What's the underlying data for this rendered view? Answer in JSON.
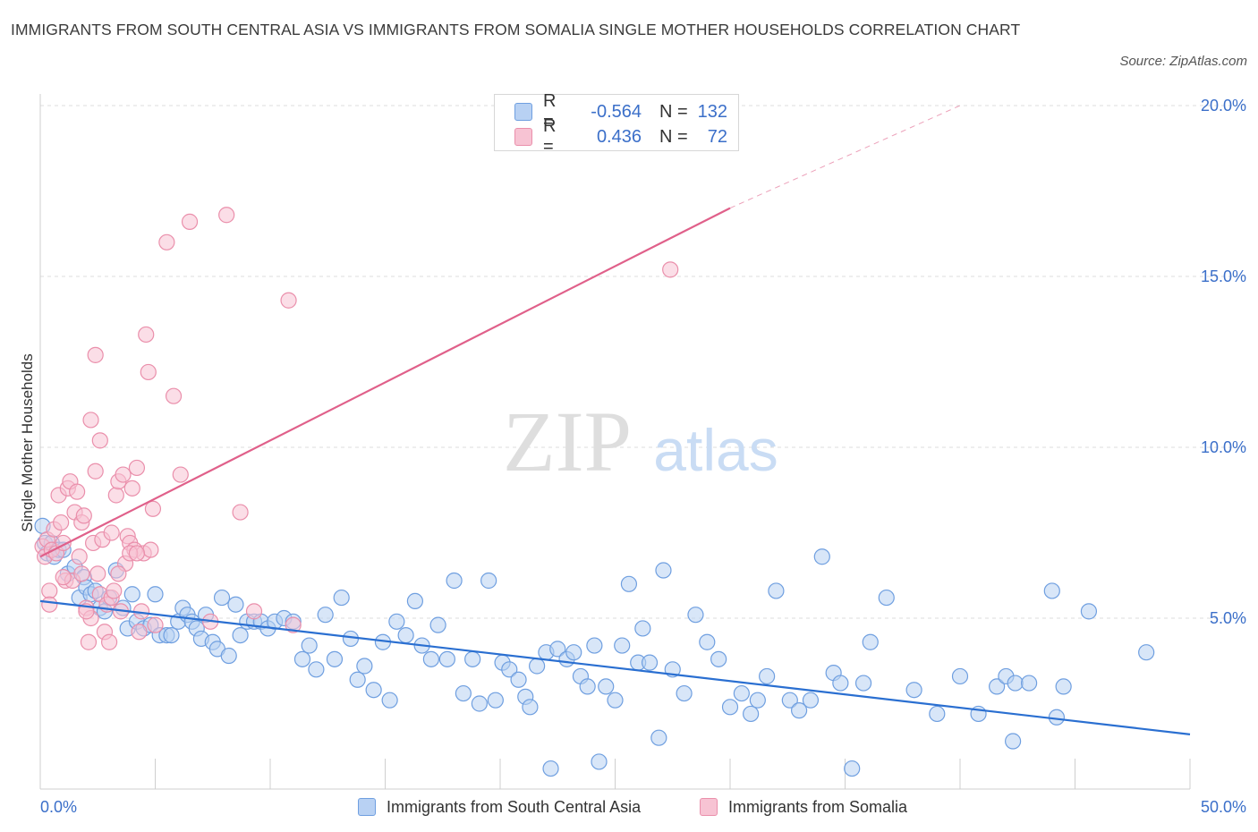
{
  "title": "IMMIGRANTS FROM SOUTH CENTRAL ASIA VS IMMIGRANTS FROM SOMALIA SINGLE MOTHER HOUSEHOLDS CORRELATION CHART",
  "source": "Source: ZipAtlas.com",
  "watermark": {
    "zip": "ZIP",
    "atlas": "atlas"
  },
  "colors": {
    "blue_fill": "#b8d1f3",
    "blue_stroke": "#6f9fe0",
    "blue_line": "#2a6fd1",
    "pink_fill": "#f7c3d3",
    "pink_stroke": "#ea8fab",
    "pink_line": "#e0608a",
    "axis_label": "#3b6fc9",
    "grid": "#dcdcdc"
  },
  "legend": {
    "rows": [
      {
        "r_label": "R =",
        "r_value": "-0.564",
        "n_label": "N =",
        "n_value": "132"
      },
      {
        "r_label": "R =",
        "r_value": "0.436",
        "n_label": "N =",
        "n_value": "72"
      }
    ]
  },
  "bottom_legend": [
    "Immigrants from South Central Asia",
    "Immigrants from Somalia"
  ],
  "chart_data": {
    "type": "scatter",
    "title": "IMMIGRANTS FROM SOUTH CENTRAL ASIA VS IMMIGRANTS FROM SOMALIA SINGLE MOTHER HOUSEHOLDS CORRELATION CHART",
    "xlabel": "",
    "ylabel": "Single Mother Households",
    "xlim": [
      0,
      50
    ],
    "ylim": [
      0,
      20
    ],
    "x_tick_labels": [
      "0.0%",
      "50.0%"
    ],
    "y_ticks": [
      5,
      10,
      15,
      20
    ],
    "y_tick_labels": [
      "5.0%",
      "10.0%",
      "15.0%",
      "20.0%"
    ],
    "grid": "horizontal dashed",
    "legend_position": "top-center",
    "series": [
      {
        "name": "Immigrants from South Central Asia",
        "r": -0.564,
        "n": 132,
        "trend": {
          "x": [
            0,
            50
          ],
          "y": [
            5.5,
            1.6
          ]
        },
        "points": [
          [
            0.1,
            7.7
          ],
          [
            0.2,
            7.2
          ],
          [
            0.3,
            6.9
          ],
          [
            0.5,
            7.2
          ],
          [
            0.6,
            6.8
          ],
          [
            0.8,
            7.0
          ],
          [
            1.0,
            7.0
          ],
          [
            1.2,
            6.3
          ],
          [
            1.5,
            6.5
          ],
          [
            1.7,
            5.6
          ],
          [
            1.9,
            6.2
          ],
          [
            2.0,
            5.9
          ],
          [
            2.2,
            5.7
          ],
          [
            2.4,
            5.8
          ],
          [
            2.6,
            5.3
          ],
          [
            2.8,
            5.2
          ],
          [
            3.0,
            5.6
          ],
          [
            3.3,
            6.4
          ],
          [
            3.6,
            5.3
          ],
          [
            3.8,
            4.7
          ],
          [
            4.0,
            5.7
          ],
          [
            4.2,
            4.9
          ],
          [
            4.5,
            4.7
          ],
          [
            4.8,
            4.8
          ],
          [
            5.0,
            5.7
          ],
          [
            5.2,
            4.5
          ],
          [
            5.5,
            4.5
          ],
          [
            5.7,
            4.5
          ],
          [
            6.0,
            4.9
          ],
          [
            6.2,
            5.3
          ],
          [
            6.4,
            5.1
          ],
          [
            6.6,
            4.9
          ],
          [
            6.8,
            4.7
          ],
          [
            7.0,
            4.4
          ],
          [
            7.2,
            5.1
          ],
          [
            7.5,
            4.3
          ],
          [
            7.7,
            4.1
          ],
          [
            7.9,
            5.6
          ],
          [
            8.2,
            3.9
          ],
          [
            8.5,
            5.4
          ],
          [
            8.7,
            4.5
          ],
          [
            9.0,
            4.9
          ],
          [
            9.3,
            4.9
          ],
          [
            9.6,
            4.9
          ],
          [
            9.9,
            4.7
          ],
          [
            10.2,
            4.9
          ],
          [
            10.6,
            5.0
          ],
          [
            11.0,
            4.9
          ],
          [
            11.4,
            3.8
          ],
          [
            11.7,
            4.2
          ],
          [
            12.0,
            3.5
          ],
          [
            12.4,
            5.1
          ],
          [
            12.8,
            3.8
          ],
          [
            13.1,
            5.6
          ],
          [
            13.5,
            4.4
          ],
          [
            13.8,
            3.2
          ],
          [
            14.1,
            3.6
          ],
          [
            14.5,
            2.9
          ],
          [
            14.9,
            4.3
          ],
          [
            15.2,
            2.6
          ],
          [
            15.5,
            4.9
          ],
          [
            15.9,
            4.5
          ],
          [
            16.3,
            5.5
          ],
          [
            16.6,
            4.2
          ],
          [
            17.0,
            3.8
          ],
          [
            17.3,
            4.8
          ],
          [
            17.7,
            3.8
          ],
          [
            18.0,
            6.1
          ],
          [
            18.4,
            2.8
          ],
          [
            18.8,
            3.8
          ],
          [
            19.1,
            2.5
          ],
          [
            19.5,
            6.1
          ],
          [
            19.8,
            2.6
          ],
          [
            20.1,
            3.7
          ],
          [
            20.4,
            3.5
          ],
          [
            20.8,
            3.2
          ],
          [
            21.1,
            2.7
          ],
          [
            21.3,
            2.4
          ],
          [
            21.6,
            3.6
          ],
          [
            22.0,
            4.0
          ],
          [
            22.2,
            0.6
          ],
          [
            22.5,
            4.1
          ],
          [
            22.9,
            3.8
          ],
          [
            23.2,
            4.0
          ],
          [
            23.5,
            3.3
          ],
          [
            23.8,
            3.0
          ],
          [
            24.1,
            4.2
          ],
          [
            24.3,
            0.8
          ],
          [
            24.6,
            3.0
          ],
          [
            25.0,
            2.6
          ],
          [
            25.3,
            4.2
          ],
          [
            25.6,
            6.0
          ],
          [
            26.0,
            3.7
          ],
          [
            26.2,
            4.7
          ],
          [
            26.5,
            3.7
          ],
          [
            26.9,
            1.5
          ],
          [
            27.1,
            6.4
          ],
          [
            27.5,
            3.5
          ],
          [
            28.0,
            2.8
          ],
          [
            28.5,
            5.1
          ],
          [
            29.0,
            4.3
          ],
          [
            29.5,
            3.8
          ],
          [
            30.0,
            2.4
          ],
          [
            30.5,
            2.8
          ],
          [
            30.9,
            2.2
          ],
          [
            31.2,
            2.6
          ],
          [
            31.6,
            3.3
          ],
          [
            32.0,
            5.8
          ],
          [
            32.6,
            2.6
          ],
          [
            33.0,
            2.3
          ],
          [
            33.5,
            2.6
          ],
          [
            34.0,
            6.8
          ],
          [
            34.5,
            3.4
          ],
          [
            34.8,
            3.1
          ],
          [
            35.3,
            0.6
          ],
          [
            35.8,
            3.1
          ],
          [
            36.1,
            4.3
          ],
          [
            36.8,
            5.6
          ],
          [
            38.0,
            2.9
          ],
          [
            39.0,
            2.2
          ],
          [
            40.0,
            3.3
          ],
          [
            40.8,
            2.2
          ],
          [
            41.6,
            3.0
          ],
          [
            42.0,
            3.3
          ],
          [
            42.4,
            3.1
          ],
          [
            42.3,
            1.4
          ],
          [
            43.0,
            3.1
          ],
          [
            44.0,
            5.8
          ],
          [
            44.5,
            3.0
          ],
          [
            44.2,
            2.1
          ],
          [
            45.6,
            5.2
          ],
          [
            48.1,
            4.0
          ]
        ]
      },
      {
        "name": "Immigrants from Somalia",
        "r": 0.436,
        "n": 72,
        "trend": {
          "x": [
            0,
            30,
            40
          ],
          "y": [
            6.8,
            17.0,
            20.0
          ]
        },
        "points": [
          [
            0.1,
            7.1
          ],
          [
            0.2,
            6.8
          ],
          [
            0.3,
            7.3
          ],
          [
            0.4,
            5.8
          ],
          [
            0.5,
            7.0
          ],
          [
            0.6,
            7.6
          ],
          [
            0.7,
            6.9
          ],
          [
            0.8,
            8.6
          ],
          [
            0.9,
            7.8
          ],
          [
            1.0,
            7.2
          ],
          [
            1.1,
            6.1
          ],
          [
            1.2,
            8.8
          ],
          [
            1.3,
            9.0
          ],
          [
            1.4,
            6.1
          ],
          [
            1.5,
            8.1
          ],
          [
            1.6,
            8.7
          ],
          [
            1.7,
            6.8
          ],
          [
            1.8,
            7.8
          ],
          [
            1.9,
            8.0
          ],
          [
            2.0,
            5.3
          ],
          [
            2.1,
            4.3
          ],
          [
            2.2,
            5.0
          ],
          [
            2.3,
            7.2
          ],
          [
            2.4,
            9.3
          ],
          [
            2.5,
            6.3
          ],
          [
            2.6,
            5.7
          ],
          [
            2.7,
            7.3
          ],
          [
            2.8,
            4.6
          ],
          [
            2.9,
            5.4
          ],
          [
            3.0,
            4.3
          ],
          [
            3.1,
            5.6
          ],
          [
            3.2,
            5.8
          ],
          [
            3.3,
            8.6
          ],
          [
            3.4,
            9.0
          ],
          [
            3.5,
            5.2
          ],
          [
            3.6,
            9.2
          ],
          [
            3.7,
            6.6
          ],
          [
            3.8,
            7.4
          ],
          [
            3.9,
            7.2
          ],
          [
            4.0,
            8.8
          ],
          [
            4.1,
            7.0
          ],
          [
            4.2,
            9.4
          ],
          [
            4.3,
            4.6
          ],
          [
            4.4,
            5.2
          ],
          [
            4.5,
            6.9
          ],
          [
            4.6,
            13.3
          ],
          [
            4.7,
            12.2
          ],
          [
            4.8,
            7.0
          ],
          [
            4.9,
            8.2
          ],
          [
            5.0,
            4.8
          ],
          [
            5.5,
            16.0
          ],
          [
            5.8,
            11.5
          ],
          [
            6.1,
            9.2
          ],
          [
            6.5,
            16.6
          ],
          [
            7.4,
            4.9
          ],
          [
            8.1,
            16.8
          ],
          [
            8.7,
            8.1
          ],
          [
            9.3,
            5.2
          ],
          [
            10.8,
            14.3
          ],
          [
            11.0,
            4.8
          ],
          [
            27.4,
            15.2
          ],
          [
            2.2,
            10.8
          ],
          [
            2.4,
            12.7
          ],
          [
            2.6,
            10.2
          ],
          [
            3.9,
            6.9
          ],
          [
            1.0,
            6.2
          ],
          [
            1.8,
            6.3
          ],
          [
            0.4,
            5.4
          ],
          [
            3.4,
            6.3
          ],
          [
            2.0,
            5.2
          ],
          [
            4.2,
            6.9
          ],
          [
            3.1,
            7.5
          ]
        ]
      }
    ]
  }
}
